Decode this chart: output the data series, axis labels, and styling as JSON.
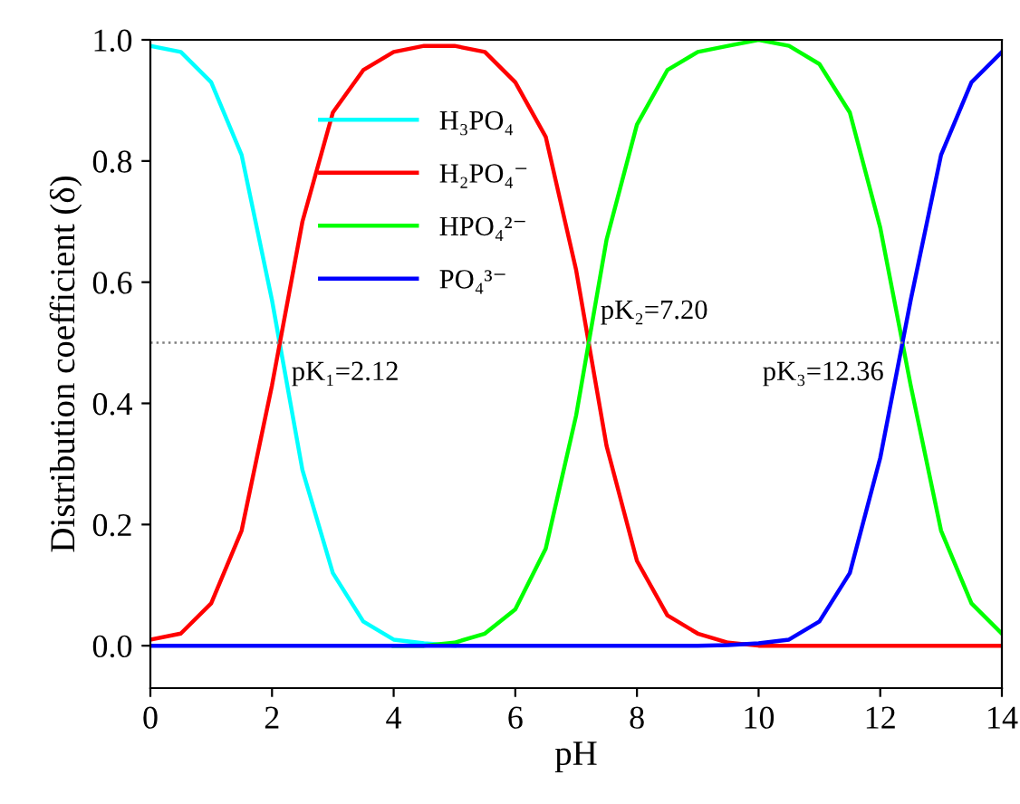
{
  "chart_data": {
    "type": "line",
    "xlabel": "pH",
    "ylabel": "Distribution coefficient (δ)",
    "x": [
      0,
      0.5,
      1,
      1.5,
      2,
      2.5,
      3,
      3.5,
      4,
      4.5,
      5,
      5.5,
      6,
      6.5,
      7,
      7.5,
      8,
      8.5,
      9,
      9.5,
      10,
      10.5,
      11,
      11.5,
      12,
      12.5,
      13,
      13.5,
      14
    ],
    "series": [
      {
        "name": "H₃PO₄",
        "color": "#00ffff",
        "values": [
          0.99,
          0.98,
          0.93,
          0.81,
          0.57,
          0.29,
          0.12,
          0.04,
          0.01,
          0.004,
          0,
          null,
          null,
          null,
          null,
          null,
          null,
          null,
          null,
          null,
          null,
          null,
          null,
          null,
          null,
          null,
          null,
          null,
          null
        ]
      },
      {
        "name": "H₂PO₄⁻",
        "color": "#ff0000",
        "values": [
          0.01,
          0.02,
          0.07,
          0.19,
          0.43,
          0.7,
          0.88,
          0.95,
          0.98,
          0.99,
          0.99,
          0.98,
          0.93,
          0.84,
          0.62,
          0.33,
          0.14,
          0.05,
          0.02,
          0.005,
          0,
          0,
          0,
          0,
          0,
          0,
          0,
          0,
          0
        ]
      },
      {
        "name": "HPO₄²⁻",
        "color": "#00ff00",
        "values": [
          null,
          null,
          null,
          null,
          null,
          null,
          null,
          null,
          0,
          0,
          0.005,
          0.02,
          0.06,
          0.16,
          0.38,
          0.67,
          0.86,
          0.95,
          0.98,
          0.99,
          1.0,
          0.99,
          0.96,
          0.88,
          0.69,
          0.43,
          0.19,
          0.07,
          0.02
        ]
      },
      {
        "name": "PO₄³⁻",
        "color": "#0000ff",
        "values": [
          0,
          0,
          0,
          0,
          0,
          0,
          0,
          0,
          0,
          0,
          0,
          0,
          0,
          0,
          0,
          0,
          0,
          0,
          0,
          0.001,
          0.004,
          0.01,
          0.04,
          0.12,
          0.31,
          0.57,
          0.81,
          0.93,
          0.98
        ]
      }
    ],
    "xlim": [
      0,
      14
    ],
    "xticks": [
      0,
      2,
      4,
      6,
      8,
      10,
      12,
      14
    ],
    "ylim": [
      -0.07,
      1.0
    ],
    "yticks": [
      {
        "value": 0,
        "label": "0.0"
      },
      0.2,
      0.4,
      0.6,
      0.8,
      {
        "value": 1,
        "label": "1.0"
      }
    ],
    "ref_lines": [
      {
        "axis": "y",
        "value": 0.5,
        "label": null,
        "color": "#808080",
        "line_style": "dotted"
      }
    ],
    "annotations": [
      {
        "text": "pK₁=2.12",
        "x": 2.12,
        "y": 0.5
      },
      {
        "text": "pK₂=7.20",
        "x": 7.2,
        "y": 0.5
      },
      {
        "text": "pK₃=12.36",
        "x": 12.36,
        "y": 0.5
      }
    ],
    "legend": "top left",
    "grid": false,
    "marker": "none",
    "line_style": "solid"
  }
}
